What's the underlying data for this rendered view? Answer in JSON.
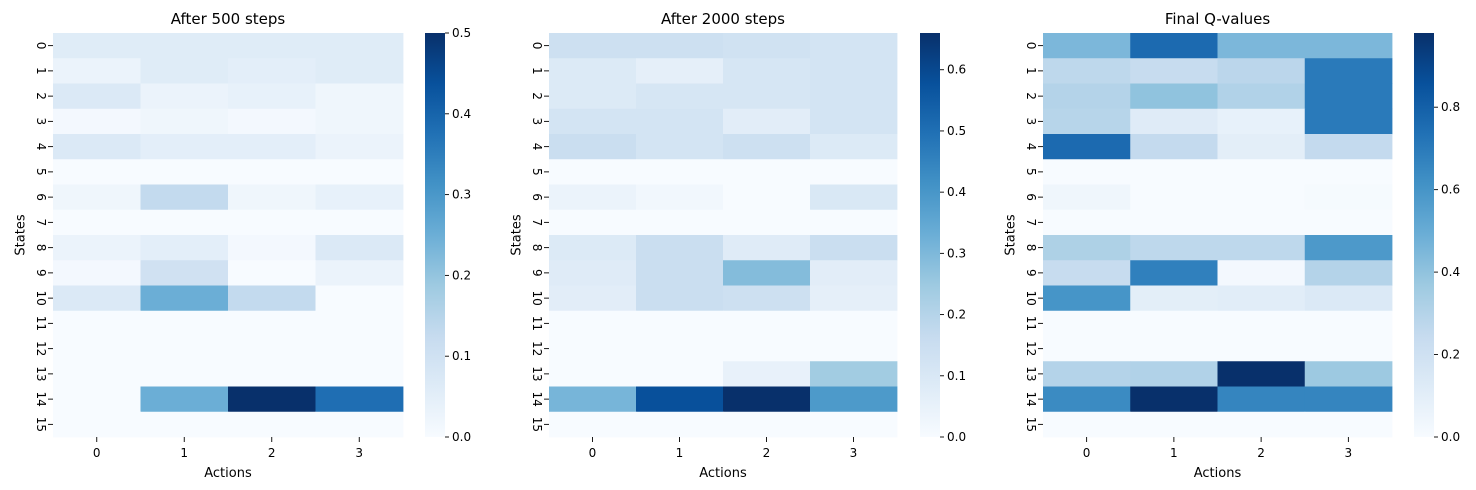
{
  "chart_data": [
    {
      "type": "heatmap",
      "title": "After 500 steps",
      "xlabel": "Actions",
      "ylabel": "States",
      "x_ticks": [
        "0",
        "1",
        "2",
        "3"
      ],
      "y_ticks": [
        "0",
        "1",
        "2",
        "3",
        "4",
        "5",
        "6",
        "7",
        "8",
        "9",
        "10",
        "11",
        "12",
        "13",
        "14",
        "15"
      ],
      "colormap": "Blues",
      "vmin": 0,
      "vmax": 0.5,
      "colorbar_ticks": [
        "0.0",
        "0.1",
        "0.2",
        "0.3",
        "0.4",
        "0.5"
      ],
      "values": [
        [
          0.06,
          0.06,
          0.06,
          0.06
        ],
        [
          0.03,
          0.06,
          0.05,
          0.06
        ],
        [
          0.07,
          0.03,
          0.04,
          0.02
        ],
        [
          0.01,
          0.02,
          0.01,
          0.02
        ],
        [
          0.07,
          0.05,
          0.05,
          0.03
        ],
        [
          0.0,
          0.0,
          0.0,
          0.0
        ],
        [
          0.02,
          0.13,
          0.02,
          0.04
        ],
        [
          0.0,
          0.0,
          0.0,
          0.0
        ],
        [
          0.03,
          0.05,
          0.01,
          0.07
        ],
        [
          0.01,
          0.1,
          0.0,
          0.03
        ],
        [
          0.07,
          0.25,
          0.13,
          0.0
        ],
        [
          0.0,
          0.0,
          0.0,
          0.0
        ],
        [
          0.0,
          0.0,
          0.0,
          0.0
        ],
        [
          0.0,
          0.0,
          0.0,
          0.0
        ],
        [
          0.0,
          0.25,
          0.5,
          0.38
        ],
        [
          0.0,
          0.0,
          0.0,
          0.0
        ]
      ]
    },
    {
      "type": "heatmap",
      "title": "After 2000 steps",
      "xlabel": "Actions",
      "ylabel": "States",
      "x_ticks": [
        "0",
        "1",
        "2",
        "3"
      ],
      "y_ticks": [
        "0",
        "1",
        "2",
        "3",
        "4",
        "5",
        "6",
        "7",
        "8",
        "9",
        "10",
        "11",
        "12",
        "13",
        "14",
        "15"
      ],
      "colormap": "Blues",
      "vmin": 0,
      "vmax": 0.66,
      "colorbar_ticks": [
        "0.0",
        "0.1",
        "0.2",
        "0.3",
        "0.4",
        "0.5",
        "0.6"
      ],
      "values": [
        [
          0.14,
          0.14,
          0.13,
          0.12
        ],
        [
          0.09,
          0.06,
          0.11,
          0.12
        ],
        [
          0.09,
          0.11,
          0.11,
          0.12
        ],
        [
          0.12,
          0.12,
          0.07,
          0.12
        ],
        [
          0.15,
          0.12,
          0.14,
          0.09
        ],
        [
          0.0,
          0.0,
          0.0,
          0.0
        ],
        [
          0.04,
          0.02,
          0.0,
          0.1
        ],
        [
          0.0,
          0.0,
          0.0,
          0.0
        ],
        [
          0.09,
          0.15,
          0.08,
          0.15
        ],
        [
          0.08,
          0.15,
          0.29,
          0.07
        ],
        [
          0.07,
          0.15,
          0.14,
          0.06
        ],
        [
          0.0,
          0.0,
          0.0,
          0.0
        ],
        [
          0.0,
          0.0,
          0.0,
          0.0
        ],
        [
          0.0,
          0.0,
          0.05,
          0.24
        ],
        [
          0.31,
          0.58,
          0.66,
          0.39
        ],
        [
          0.0,
          0.0,
          0.0,
          0.0
        ]
      ]
    },
    {
      "type": "heatmap",
      "title": "Final Q-values",
      "xlabel": "Actions",
      "ylabel": "States",
      "x_ticks": [
        "0",
        "1",
        "2",
        "3"
      ],
      "y_ticks": [
        "0",
        "1",
        "2",
        "3",
        "4",
        "5",
        "6",
        "7",
        "8",
        "9",
        "10",
        "11",
        "12",
        "13",
        "14",
        "15"
      ],
      "colormap": "Blues",
      "vmin": 0,
      "vmax": 0.98,
      "colorbar_ticks": [
        "0.0",
        "0.2",
        "0.4",
        "0.6",
        "0.8"
      ],
      "values": [
        [
          0.45,
          0.76,
          0.45,
          0.45
        ],
        [
          0.27,
          0.24,
          0.28,
          0.7
        ],
        [
          0.3,
          0.4,
          0.31,
          0.7
        ],
        [
          0.29,
          0.12,
          0.08,
          0.7
        ],
        [
          0.76,
          0.25,
          0.1,
          0.25
        ],
        [
          0.0,
          0.0,
          0.0,
          0.0
        ],
        [
          0.04,
          0.0,
          0.0,
          0.01
        ],
        [
          0.0,
          0.0,
          0.0,
          0.0
        ],
        [
          0.32,
          0.27,
          0.27,
          0.58
        ],
        [
          0.24,
          0.68,
          0.02,
          0.3
        ],
        [
          0.6,
          0.1,
          0.11,
          0.14
        ],
        [
          0.0,
          0.0,
          0.0,
          0.0
        ],
        [
          0.0,
          0.0,
          0.0,
          0.0
        ],
        [
          0.3,
          0.31,
          0.98,
          0.37
        ],
        [
          0.64,
          0.98,
          0.66,
          0.66
        ],
        [
          0.0,
          0.0,
          0.0,
          0.0
        ]
      ]
    }
  ]
}
